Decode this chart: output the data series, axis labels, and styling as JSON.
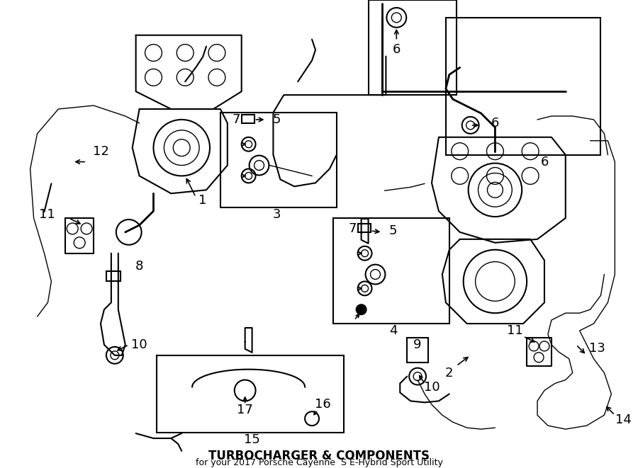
{
  "title": "TURBOCHARGER & COMPONENTS",
  "subtitle": "for your 2017 Porsche Cayenne  S E-Hybrid Sport Utility",
  "bg_color": "#ffffff",
  "line_color": "#000000",
  "box_color": "#000000",
  "label_numbers": [
    1,
    2,
    3,
    4,
    5,
    6,
    7,
    8,
    9,
    10,
    11,
    12,
    13,
    14,
    15,
    16,
    17
  ],
  "figsize": [
    9.0,
    6.61
  ],
  "dpi": 100
}
